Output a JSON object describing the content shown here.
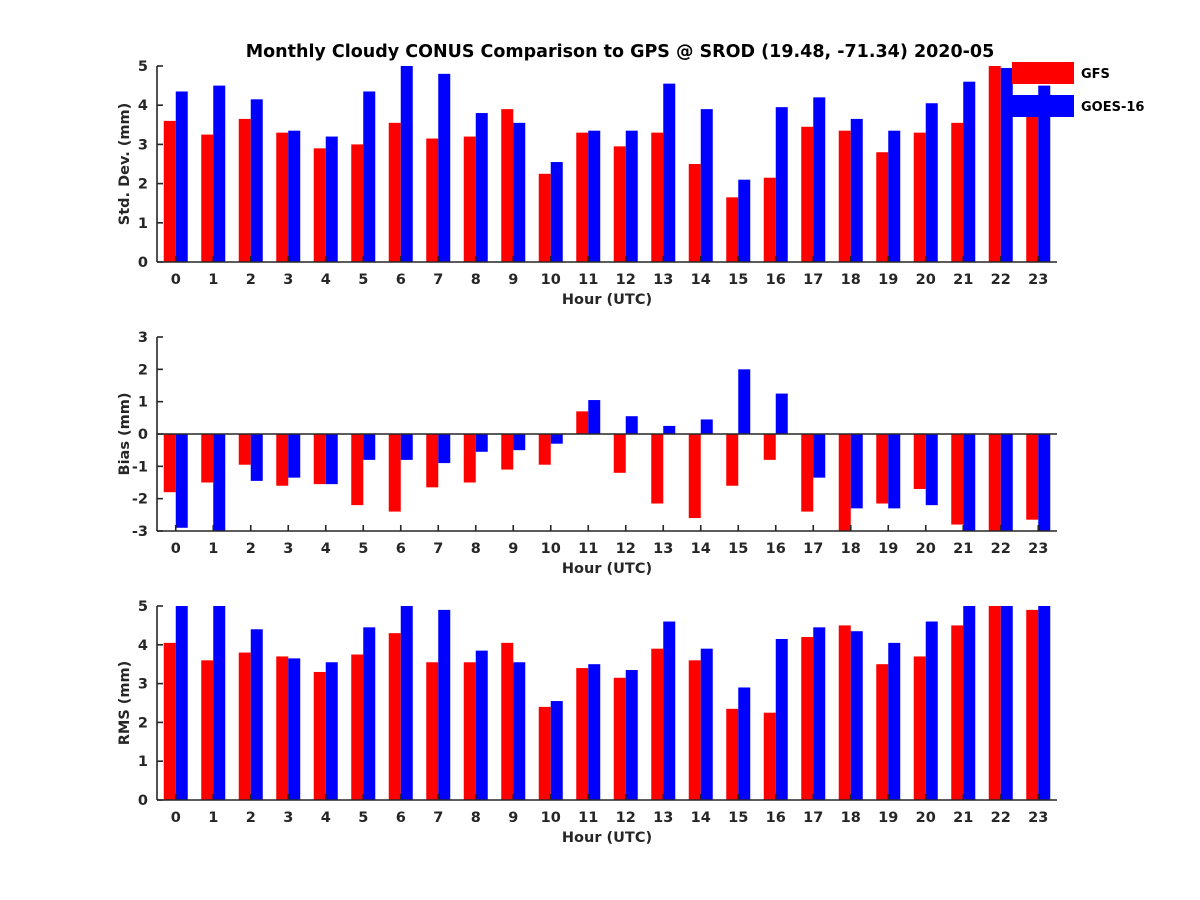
{
  "title": "Monthly Cloudy CONUS Comparison to GPS @ SROD (19.48, -71.34) 2020-05",
  "legend": {
    "series": [
      "GFS",
      "GOES-16"
    ]
  },
  "colors": {
    "GFS": "#ff0000",
    "GOES-16": "#0000ff",
    "axis": "#262626"
  },
  "chart_data": [
    {
      "type": "bar",
      "categories": [
        "0",
        "1",
        "2",
        "3",
        "4",
        "5",
        "6",
        "7",
        "8",
        "9",
        "10",
        "11",
        "12",
        "13",
        "14",
        "15",
        "16",
        "17",
        "18",
        "19",
        "20",
        "21",
        "22",
        "23"
      ],
      "xlabel": "Hour (UTC)",
      "ylabel": "Std. Dev. (mm)",
      "ylim": [
        0,
        5
      ],
      "yticks": [
        "0",
        "1",
        "2",
        "3",
        "4",
        "5"
      ],
      "legend_position": "top-right",
      "series": [
        {
          "name": "GFS",
          "values": [
            3.6,
            3.25,
            3.65,
            3.3,
            2.9,
            3.0,
            3.55,
            3.15,
            3.2,
            3.9,
            2.25,
            3.3,
            2.95,
            3.3,
            2.5,
            1.65,
            2.15,
            3.45,
            3.35,
            2.8,
            3.3,
            3.55,
            5.0,
            3.8
          ]
        },
        {
          "name": "GOES-16",
          "values": [
            4.35,
            4.5,
            4.15,
            3.35,
            3.2,
            4.35,
            5.0,
            4.8,
            3.8,
            3.55,
            2.55,
            3.35,
            3.35,
            4.55,
            3.9,
            2.1,
            3.95,
            4.2,
            3.65,
            3.35,
            4.05,
            4.6,
            4.95,
            4.5
          ]
        }
      ]
    },
    {
      "type": "bar",
      "categories": [
        "0",
        "1",
        "2",
        "3",
        "4",
        "5",
        "6",
        "7",
        "8",
        "9",
        "10",
        "11",
        "12",
        "13",
        "14",
        "15",
        "16",
        "17",
        "18",
        "19",
        "20",
        "21",
        "22",
        "23"
      ],
      "xlabel": "Hour (UTC)",
      "ylabel": "Bias (mm)",
      "ylim": [
        -3,
        3
      ],
      "yticks": [
        "-3",
        "-2",
        "-1",
        "0",
        "1",
        "2",
        "3"
      ],
      "series": [
        {
          "name": "GFS",
          "values": [
            -1.8,
            -1.5,
            -0.95,
            -1.6,
            -1.55,
            -2.2,
            -2.4,
            -1.65,
            -1.5,
            -1.1,
            -0.95,
            0.7,
            -1.2,
            -2.15,
            -2.6,
            -1.6,
            -0.8,
            -2.4,
            -3.0,
            -2.15,
            -1.7,
            -2.8,
            -3.0,
            -2.65
          ]
        },
        {
          "name": "GOES-16",
          "values": [
            -2.9,
            -3.0,
            -1.45,
            -1.35,
            -1.55,
            -0.8,
            -0.8,
            -0.9,
            -0.55,
            -0.5,
            -0.3,
            1.05,
            0.55,
            0.25,
            0.45,
            2.0,
            1.25,
            -1.35,
            -2.3,
            -2.3,
            -2.2,
            -3.0,
            -3.0,
            -3.0
          ]
        }
      ]
    },
    {
      "type": "bar",
      "categories": [
        "0",
        "1",
        "2",
        "3",
        "4",
        "5",
        "6",
        "7",
        "8",
        "9",
        "10",
        "11",
        "12",
        "13",
        "14",
        "15",
        "16",
        "17",
        "18",
        "19",
        "20",
        "21",
        "22",
        "23"
      ],
      "xlabel": "Hour (UTC)",
      "ylabel": "RMS (mm)",
      "ylim": [
        0,
        5
      ],
      "yticks": [
        "0",
        "1",
        "2",
        "3",
        "4",
        "5"
      ],
      "series": [
        {
          "name": "GFS",
          "values": [
            4.05,
            3.6,
            3.8,
            3.7,
            3.3,
            3.75,
            4.3,
            3.55,
            3.55,
            4.05,
            2.4,
            3.4,
            3.15,
            3.9,
            3.6,
            2.35,
            2.25,
            4.2,
            4.5,
            3.5,
            3.7,
            4.5,
            5.0,
            4.9
          ]
        },
        {
          "name": "GOES-16",
          "values": [
            5.0,
            5.0,
            4.4,
            3.65,
            3.55,
            4.45,
            5.0,
            4.9,
            3.85,
            3.55,
            2.55,
            3.5,
            3.35,
            4.6,
            3.9,
            2.9,
            4.15,
            4.45,
            4.35,
            4.05,
            4.6,
            5.0,
            5.0,
            5.0
          ]
        }
      ]
    }
  ]
}
